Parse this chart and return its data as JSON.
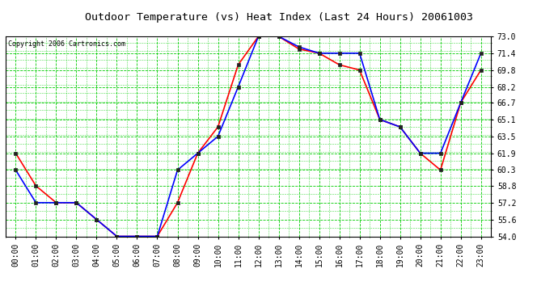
{
  "title": "Outdoor Temperature (vs) Heat Index (Last 24 Hours) 20061003",
  "copyright": "Copyright 2006 Cartronics.com",
  "hours": [
    "00:00",
    "01:00",
    "02:00",
    "03:00",
    "04:00",
    "05:00",
    "06:00",
    "07:00",
    "08:00",
    "09:00",
    "10:00",
    "11:00",
    "12:00",
    "13:00",
    "14:00",
    "15:00",
    "16:00",
    "17:00",
    "18:00",
    "19:00",
    "20:00",
    "21:00",
    "22:00",
    "23:00"
  ],
  "temp": [
    61.9,
    58.8,
    57.2,
    57.2,
    55.6,
    54.0,
    54.0,
    54.0,
    57.2,
    61.9,
    64.4,
    70.3,
    73.0,
    73.0,
    71.8,
    71.4,
    70.3,
    69.8,
    65.1,
    64.4,
    61.9,
    60.3,
    66.7,
    69.8
  ],
  "heat_index": [
    60.3,
    57.2,
    57.2,
    57.2,
    55.6,
    54.0,
    54.0,
    54.0,
    60.3,
    61.9,
    63.5,
    68.2,
    73.0,
    73.0,
    72.0,
    71.4,
    71.4,
    71.4,
    65.1,
    64.4,
    61.9,
    61.9,
    66.7,
    71.4
  ],
  "temp_color": "#ff0000",
  "heat_index_color": "#0000ff",
  "bg_color": "#ffffff",
  "plot_bg_color": "#ffffff",
  "grid_color": "#00cc00",
  "title_color": "#000000",
  "ylim_min": 54.0,
  "ylim_max": 73.0,
  "yticks": [
    54.0,
    55.6,
    57.2,
    58.8,
    60.3,
    61.9,
    63.5,
    65.1,
    66.7,
    68.2,
    69.8,
    71.4,
    73.0
  ],
  "marker": "s",
  "marker_size": 2.5,
  "linewidth": 1.2,
  "title_fontsize": 9.5,
  "tick_fontsize": 7
}
